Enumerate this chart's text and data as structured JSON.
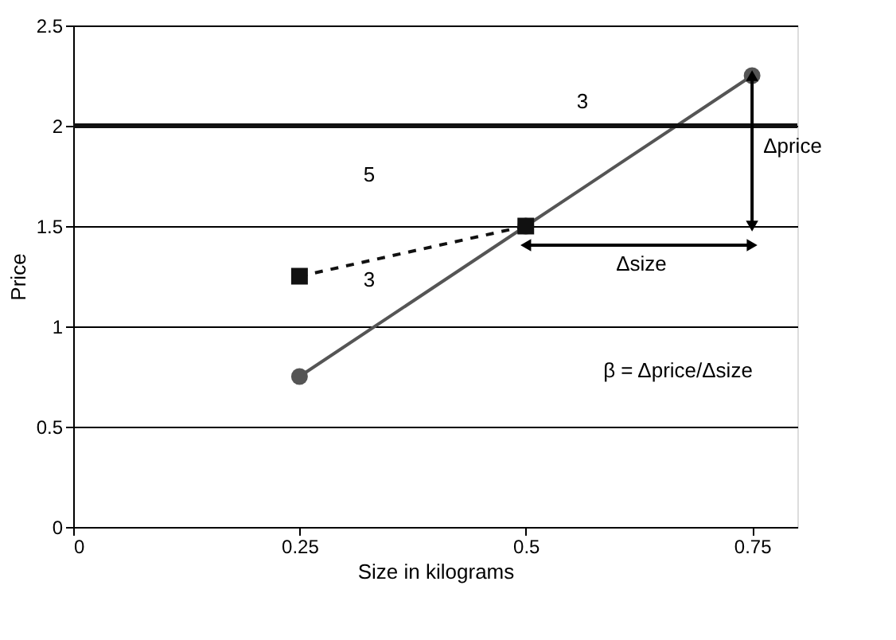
{
  "chart_data": {
    "type": "line",
    "xlabel": "Size in kilograms",
    "ylabel": "Price",
    "xlim": [
      0,
      0.8
    ],
    "xticks": [
      0,
      0.25,
      0.5,
      0.75
    ],
    "ylim": [
      0,
      2.5
    ],
    "yticks": [
      0,
      0.5,
      1,
      1.5,
      2,
      2.5
    ],
    "grid": "y",
    "series": [
      {
        "x": [
          0.25,
          0.5,
          0.75
        ],
        "values": [
          0.75,
          1.5,
          2.25
        ],
        "color": "#555555",
        "marker": "circle",
        "line_style": "solid"
      },
      {
        "x": [
          0.25,
          0.5
        ],
        "values": [
          1.25,
          1.5
        ],
        "color": "#111111",
        "marker": "square",
        "line_style": "dashed"
      }
    ],
    "ref_lines": [
      {
        "axis": "y",
        "value": 2,
        "color": "#111111"
      }
    ],
    "annotations": [
      "3",
      "5",
      "3",
      "Δprice",
      "Δsize",
      "β = Δprice/Δsize"
    ]
  }
}
